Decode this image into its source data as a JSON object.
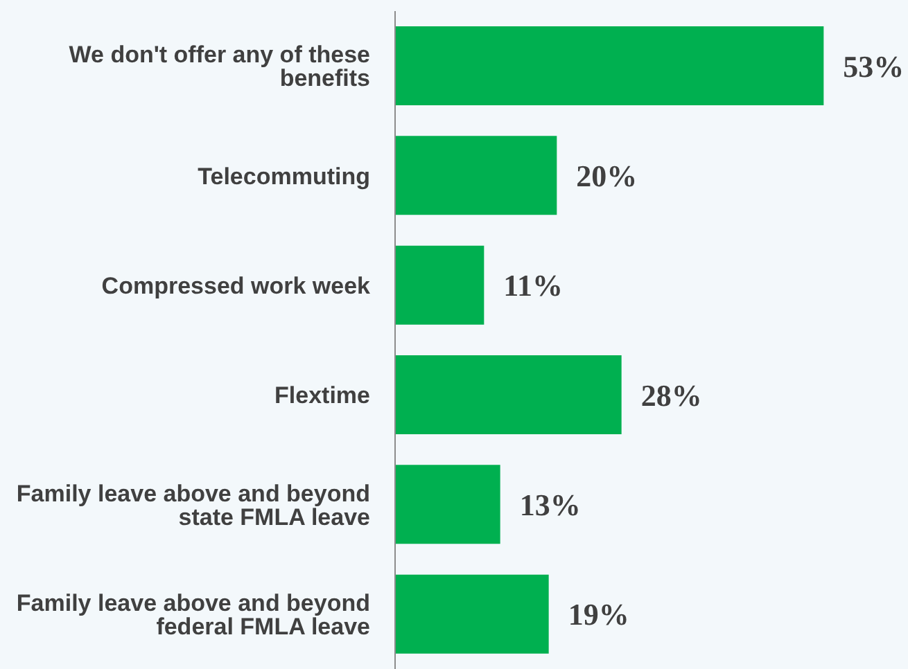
{
  "chart_data": {
    "type": "bar",
    "orientation": "horizontal",
    "categories": [
      "We don't offer any of these benefits",
      "Telecommuting",
      "Compressed work week",
      "Flextime",
      "Family leave above and beyond state FMLA leave",
      "Family leave above and beyond federal FMLA leave"
    ],
    "values": [
      53,
      20,
      11,
      28,
      13,
      19
    ],
    "value_labels": [
      "53%",
      "20%",
      "11%",
      "28%",
      "13%",
      "19%"
    ],
    "color": "#00b050",
    "grid": false,
    "legend": false
  }
}
